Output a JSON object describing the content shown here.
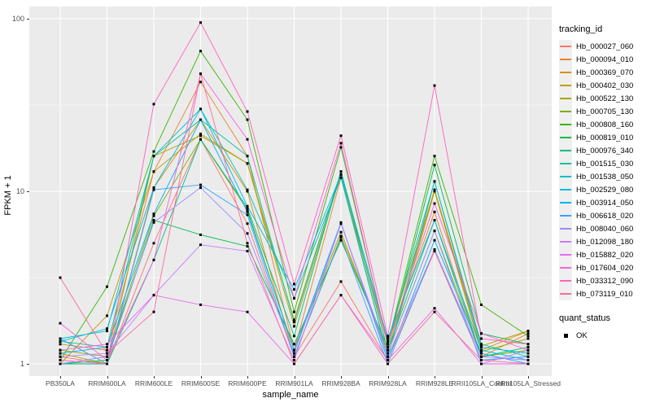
{
  "chart_data": {
    "type": "line",
    "title": "",
    "xlabel": "sample_name",
    "ylabel": "FPKM + 1",
    "y_scale": "log10",
    "ylim": [
      0.93,
      110
    ],
    "grid": true,
    "yticks": [
      {
        "label": "100",
        "value": 100
      },
      {
        "label": "10",
        "value": 10
      },
      {
        "label": "1",
        "value": 1
      }
    ],
    "minor_gridline_values": [
      3.162,
      31.62
    ],
    "categories": [
      "PB350LA",
      "RRIM600LA",
      "RRIM600LE",
      "RRIM600SE",
      "RRIM600PE",
      "RRIM901LA",
      "RRIM928BA",
      "RRIM928LA",
      "RRIM928LE",
      "RRII105LA_Control",
      "RRII105LA_Stressed"
    ],
    "legend": {
      "title": "tracking_id",
      "position": "right"
    },
    "quant_status": {
      "title": "quant_status",
      "items": [
        {
          "label": "OK",
          "marker": "black-square"
        }
      ]
    },
    "point_marker": "black-square",
    "series": [
      {
        "name": "Hb_000027_060",
        "color": "#F8766D",
        "values": [
          1.1,
          1.0,
          5.0,
          20,
          6.5,
          1.1,
          3.0,
          1.05,
          4.5,
          1.05,
          1.1
        ]
      },
      {
        "name": "Hb_000094_010",
        "color": "#EA8331",
        "values": [
          1.3,
          1.2,
          13,
          43,
          16,
          1.2,
          12,
          1.3,
          7.6,
          1.1,
          1.5
        ]
      },
      {
        "name": "Hb_000369_070",
        "color": "#D89000",
        "values": [
          1.4,
          1.0,
          10.5,
          26,
          10,
          1.1,
          5.5,
          1.2,
          10.2,
          1.2,
          1.55
        ]
      },
      {
        "name": "Hb_000402_030",
        "color": "#C09B00",
        "values": [
          1.0,
          1.9,
          13,
          21.5,
          14.5,
          1.8,
          13,
          1.35,
          10.2,
          1.27,
          1.55
        ]
      },
      {
        "name": "Hb_000522_130",
        "color": "#A3A500",
        "values": [
          1.15,
          1.0,
          16,
          21,
          14.5,
          1.65,
          12.5,
          1.1,
          10.0,
          1.18,
          1.4
        ]
      },
      {
        "name": "Hb_000705_130",
        "color": "#7CAE00",
        "values": [
          1.2,
          1.1,
          7.2,
          20,
          7.8,
          1.2,
          5.8,
          1.15,
          5.9,
          1.1,
          1.2
        ]
      },
      {
        "name": "Hb_000808_160",
        "color": "#39B600",
        "values": [
          1.05,
          2.8,
          17,
          65,
          26,
          2.0,
          18,
          1.3,
          16,
          2.2,
          1.45
        ]
      },
      {
        "name": "Hb_000819_010",
        "color": "#00BB4E",
        "values": [
          1.0,
          1.05,
          6.8,
          5.6,
          4.8,
          1.3,
          5.2,
          1.25,
          14.2,
          1.5,
          1.3
        ]
      },
      {
        "name": "Hb_000976_340",
        "color": "#00BF7D",
        "values": [
          1.0,
          1.0,
          4.0,
          20,
          8.0,
          1.45,
          13,
          1.2,
          6.8,
          1.1,
          1.25
        ]
      },
      {
        "name": "Hb_001515_030",
        "color": "#00C1A3",
        "values": [
          1.35,
          1.25,
          16,
          26,
          16,
          1.75,
          13,
          1.35,
          11.4,
          1.3,
          1.1
        ]
      },
      {
        "name": "Hb_001538_050",
        "color": "#00BFC4",
        "values": [
          1.4,
          1.55,
          16,
          30,
          10.2,
          2.4,
          12,
          1.1,
          11.4,
          1.25,
          1.15
        ]
      },
      {
        "name": "Hb_002529_080",
        "color": "#00BAE0",
        "values": [
          1.35,
          1.6,
          10.5,
          30,
          8.2,
          2.7,
          12.5,
          1.4,
          6.8,
          1.2,
          1.05
        ]
      },
      {
        "name": "Hb_003914_050",
        "color": "#00B0F6",
        "values": [
          1.15,
          1.25,
          7.4,
          26,
          7.6,
          1.2,
          6.6,
          1.05,
          5.2,
          1.15,
          1.0
        ]
      },
      {
        "name": "Hb_006618_020",
        "color": "#35A2FF",
        "values": [
          1.4,
          1.0,
          10.2,
          10.9,
          7.3,
          1.1,
          5.4,
          1.0,
          4.6,
          1.05,
          1.1
        ]
      },
      {
        "name": "Hb_008040_060",
        "color": "#9590FF",
        "values": [
          1.0,
          1.1,
          6.6,
          10.5,
          5.7,
          1.15,
          6.5,
          1.15,
          5.9,
          1.0,
          1.2
        ]
      },
      {
        "name": "Hb_012098_180",
        "color": "#C77CFF",
        "values": [
          1.1,
          1.15,
          2.5,
          4.9,
          4.5,
          1.05,
          6.5,
          1.1,
          4.6,
          1.1,
          1.05
        ]
      },
      {
        "name": "Hb_015882_020",
        "color": "#E76BF3",
        "values": [
          1.2,
          1.3,
          2.5,
          2.2,
          2.0,
          1.0,
          2.5,
          1.05,
          2.1,
          1.0,
          1.0
        ]
      },
      {
        "name": "Hb_017604_020",
        "color": "#FA62DB",
        "values": [
          1.72,
          1.05,
          4.0,
          48,
          20,
          2.4,
          19,
          1.3,
          8.5,
          1.5,
          1.2
        ]
      },
      {
        "name": "Hb_033312_090",
        "color": "#FF62BC",
        "values": [
          1.05,
          1.0,
          32,
          95,
          29,
          2.9,
          21,
          1.45,
          41,
          1.4,
          1.3
        ]
      },
      {
        "name": "Hb_073119_010",
        "color": "#FF6A98",
        "values": [
          3.16,
          1.15,
          2.0,
          48,
          5.0,
          1.0,
          2.5,
          1.0,
          2.0,
          1.05,
          1.0
        ]
      }
    ],
    "colors": {
      "panel_background": "#EBEBEB",
      "gridline": "#FFFFFF",
      "tick_text": "#4D4D4D",
      "point": "#000000"
    }
  }
}
